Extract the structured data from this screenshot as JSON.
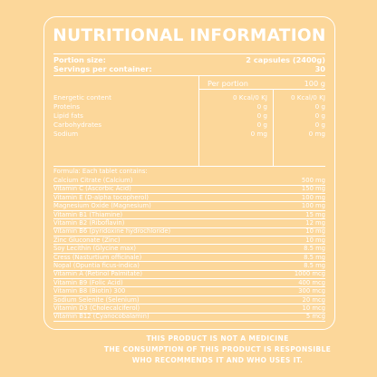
{
  "title": "NUTRITIONAL INFORMATION",
  "portion": {
    "label": "Portion size:",
    "value": "2 capsules (2400g)"
  },
  "servings": {
    "label": "Servings per container:",
    "value": "30"
  },
  "columns": {
    "per_portion": "Per portion",
    "per_100g": "100 g"
  },
  "nutrients": [
    {
      "name": "Energetic content",
      "portion": "0 Kcal/0 KJ",
      "per100": "0 Kcal/0 KJ"
    },
    {
      "name": "Proteins",
      "portion": "0 g",
      "per100": "0 g"
    },
    {
      "name": "Lipid fats",
      "portion": "0 g",
      "per100": "0 g"
    },
    {
      "name": "Carbohydrates",
      "portion": "0 g",
      "per100": "0 g"
    },
    {
      "name": "Sodium",
      "portion": "0 mg",
      "per100": "0 mg"
    }
  ],
  "formula_header": "Formula: Each tablet contains:",
  "formula": [
    {
      "name": "Calcium Citrate (Calcium)",
      "amount": "500 mg"
    },
    {
      "name": "Vitamin C (Ascorbic Acid)",
      "amount": "150 mg"
    },
    {
      "name": "Vitamin E (D-alpha tocopherol)",
      "amount": "100 mg"
    },
    {
      "name": "Magnesium Oxide (Magnesium)",
      "amount": "100 mg"
    },
    {
      "name": "Vitamin B1 (Thiamine)",
      "amount": "15 mg"
    },
    {
      "name": "Vitamin B2 (Riboflavin)",
      "amount": "12 mg"
    },
    {
      "name": "Vitamin B6 (pyridoxine hydrochloride)",
      "amount": "10 mg"
    },
    {
      "name": "Zinc Gluconate (Zinc)",
      "amount": "10 mg"
    },
    {
      "name": "Soy Lecithin (Glycine max)",
      "amount": "8.5 mg"
    },
    {
      "name": "Cress (Nasturtium officinale)",
      "amount": "8.5 mg"
    },
    {
      "name": "Nopal (Opuntia ficus-indica)",
      "amount": "8.5 mg"
    },
    {
      "name": "Vitamin A (Retinol Palmitate)",
      "amount": "1000 mcg"
    },
    {
      "name": "Vitamin B9 (Folic Acid)",
      "amount": "400 mcg"
    },
    {
      "name": "Vitamin B8 (Biotin) 300",
      "amount": "300 mcg"
    },
    {
      "name": "Sodium Selenite (Selenium)",
      "amount": "20 mcg"
    },
    {
      "name": "Vitamin D3 (Cholecalciferol)",
      "amount": "10 mcg"
    },
    {
      "name": "Vitamin B12 (Cyanocobalamin)",
      "amount": "5 mcg"
    }
  ],
  "footer": [
    "THIS PRODUCT IS NOT A MEDICINE",
    "THE CONSUMPTION OF THIS PRODUCT IS RESPONSIBLE",
    "WHO RECOMMENDS IT AND WHO USES IT."
  ],
  "colors": {
    "background": "#FCD79A",
    "text": "#FFFFFF"
  }
}
